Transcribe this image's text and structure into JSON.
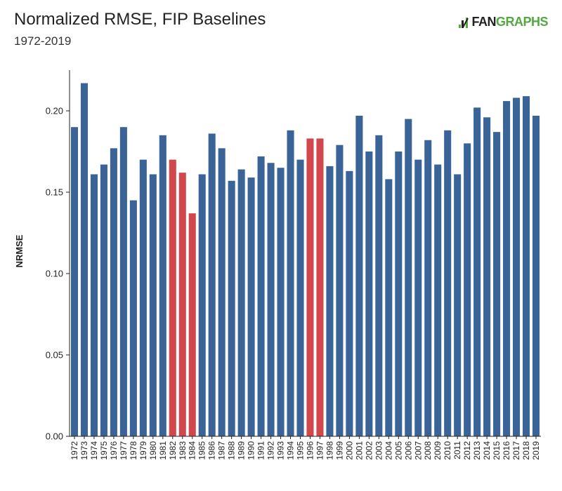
{
  "header": {
    "title": "Normalized RMSE, FIP Baselines",
    "subtitle": "1972-2019",
    "logo_text_fan": "FAN",
    "logo_text_graphs": "GRAPHS"
  },
  "colors": {
    "default_bar": "#3a6397",
    "highlight_bar": "#d1474b",
    "logo_green": "#53a93f"
  },
  "chart_data": {
    "type": "bar",
    "title": "Normalized RMSE, FIP Baselines",
    "subtitle": "1972-2019",
    "xlabel": "",
    "ylabel": "NRMSE",
    "ylim": [
      0,
      0.225
    ],
    "yticks": [
      "0.00",
      "0.05",
      "0.10",
      "0.15",
      "0.20"
    ],
    "grid": false,
    "categories": [
      "1972",
      "1973",
      "1974",
      "1975",
      "1976",
      "1977",
      "1978",
      "1979",
      "1980",
      "1981",
      "1982",
      "1983",
      "1984",
      "1985",
      "1986",
      "1987",
      "1988",
      "1989",
      "1990",
      "1991",
      "1992",
      "1993",
      "1994",
      "1995",
      "1996",
      "1997",
      "1998",
      "1999",
      "2000",
      "2001",
      "2002",
      "2003",
      "2004",
      "2005",
      "2006",
      "2007",
      "2008",
      "2009",
      "2010",
      "2011",
      "2012",
      "2013",
      "2014",
      "2015",
      "2016",
      "2017",
      "2018",
      "2019"
    ],
    "values": [
      0.19,
      0.217,
      0.161,
      0.167,
      0.177,
      0.19,
      0.145,
      0.17,
      0.161,
      0.185,
      0.17,
      0.162,
      0.137,
      0.161,
      0.186,
      0.177,
      0.157,
      0.164,
      0.159,
      0.172,
      0.168,
      0.165,
      0.188,
      0.17,
      0.183,
      0.183,
      0.166,
      0.179,
      0.163,
      0.197,
      0.175,
      0.185,
      0.158,
      0.175,
      0.195,
      0.17,
      0.182,
      0.167,
      0.188,
      0.161,
      0.18,
      0.202,
      0.196,
      0.187,
      0.206,
      0.208,
      0.209,
      0.197
    ],
    "highlighted": [
      "1982",
      "1983",
      "1984",
      "1996",
      "1997"
    ]
  }
}
